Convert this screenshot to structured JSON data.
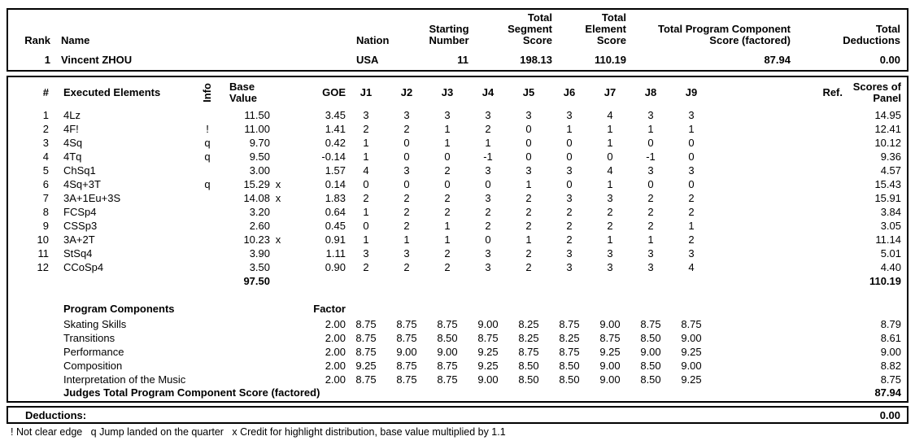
{
  "scoreboard": {
    "header": {
      "labels": {
        "rank": "Rank",
        "name": "Name",
        "nation": "Nation",
        "starting_number": "Starting\nNumber",
        "total_segment_score": "Total\nSegment\nScore",
        "total_element_score": "Total\nElement\nScore",
        "total_pcs": "Total Program Component\nScore (factored)",
        "total_deductions": "Total\nDeductions"
      },
      "result": {
        "rank": "1",
        "name": "Vincent ZHOU",
        "nation": "USA",
        "starting_number": "11",
        "total_segment_score": "198.13",
        "total_element_score": "110.19",
        "total_pcs": "87.94",
        "total_deductions": "0.00"
      }
    },
    "elements": {
      "headers": {
        "num": "#",
        "name": "Executed Elements",
        "info": "Info",
        "base_value": "Base\nValue",
        "goe": "GOE",
        "judges": [
          "J1",
          "J2",
          "J3",
          "J4",
          "J5",
          "J6",
          "J7",
          "J8",
          "J9"
        ],
        "ref": "Ref.",
        "panel": "Scores of\nPanel"
      },
      "rows": [
        {
          "num": "1",
          "name": "4Lz",
          "info": "",
          "base": "11.50",
          "x": "",
          "goe": "3.45",
          "j": [
            "3",
            "3",
            "3",
            "3",
            "3",
            "3",
            "4",
            "3",
            "3"
          ],
          "panel": "14.95"
        },
        {
          "num": "2",
          "name": "4F!",
          "info": "!",
          "base": "11.00",
          "x": "",
          "goe": "1.41",
          "j": [
            "2",
            "2",
            "1",
            "2",
            "0",
            "1",
            "1",
            "1",
            "1"
          ],
          "panel": "12.41"
        },
        {
          "num": "3",
          "name": "4Sq",
          "info": "q",
          "base": "9.70",
          "x": "",
          "goe": "0.42",
          "j": [
            "1",
            "0",
            "1",
            "1",
            "0",
            "0",
            "1",
            "0",
            "0"
          ],
          "panel": "10.12"
        },
        {
          "num": "4",
          "name": "4Tq",
          "info": "q",
          "base": "9.50",
          "x": "",
          "goe": "-0.14",
          "j": [
            "1",
            "0",
            "0",
            "-1",
            "0",
            "0",
            "0",
            "-1",
            "0"
          ],
          "panel": "9.36"
        },
        {
          "num": "5",
          "name": "ChSq1",
          "info": "",
          "base": "3.00",
          "x": "",
          "goe": "1.57",
          "j": [
            "4",
            "3",
            "2",
            "3",
            "3",
            "3",
            "4",
            "3",
            "3"
          ],
          "panel": "4.57"
        },
        {
          "num": "6",
          "name": "4Sq+3T",
          "info": "q",
          "base": "15.29",
          "x": "x",
          "goe": "0.14",
          "j": [
            "0",
            "0",
            "0",
            "0",
            "1",
            "0",
            "1",
            "0",
            "0"
          ],
          "panel": "15.43"
        },
        {
          "num": "7",
          "name": "3A+1Eu+3S",
          "info": "",
          "base": "14.08",
          "x": "x",
          "goe": "1.83",
          "j": [
            "2",
            "2",
            "2",
            "3",
            "2",
            "3",
            "3",
            "2",
            "2"
          ],
          "panel": "15.91"
        },
        {
          "num": "8",
          "name": "FCSp4",
          "info": "",
          "base": "3.20",
          "x": "",
          "goe": "0.64",
          "j": [
            "1",
            "2",
            "2",
            "2",
            "2",
            "2",
            "2",
            "2",
            "2"
          ],
          "panel": "3.84"
        },
        {
          "num": "9",
          "name": "CSSp3",
          "info": "",
          "base": "2.60",
          "x": "",
          "goe": "0.45",
          "j": [
            "0",
            "2",
            "1",
            "2",
            "2",
            "2",
            "2",
            "2",
            "1"
          ],
          "panel": "3.05"
        },
        {
          "num": "10",
          "name": "3A+2T",
          "info": "",
          "base": "10.23",
          "x": "x",
          "goe": "0.91",
          "j": [
            "1",
            "1",
            "1",
            "0",
            "1",
            "2",
            "1",
            "1",
            "2"
          ],
          "panel": "11.14"
        },
        {
          "num": "11",
          "name": "StSq4",
          "info": "",
          "base": "3.90",
          "x": "",
          "goe": "1.11",
          "j": [
            "3",
            "3",
            "2",
            "3",
            "2",
            "3",
            "3",
            "3",
            "3"
          ],
          "panel": "5.01"
        },
        {
          "num": "12",
          "name": "CCoSp4",
          "info": "",
          "base": "3.50",
          "x": "",
          "goe": "0.90",
          "j": [
            "2",
            "2",
            "2",
            "3",
            "2",
            "3",
            "3",
            "3",
            "4"
          ],
          "panel": "4.40"
        }
      ],
      "total": {
        "base": "97.50",
        "panel": "110.19"
      }
    },
    "components": {
      "title": "Program Components",
      "factor_label": "Factor",
      "rows": [
        {
          "name": "Skating Skills",
          "factor": "2.00",
          "j": [
            "8.75",
            "8.75",
            "8.75",
            "9.00",
            "8.25",
            "8.75",
            "9.00",
            "8.75",
            "8.75"
          ],
          "score": "8.79"
        },
        {
          "name": "Transitions",
          "factor": "2.00",
          "j": [
            "8.75",
            "8.75",
            "8.50",
            "8.75",
            "8.25",
            "8.25",
            "8.75",
            "8.50",
            "9.00"
          ],
          "score": "8.61"
        },
        {
          "name": "Performance",
          "factor": "2.00",
          "j": [
            "8.75",
            "9.00",
            "9.00",
            "9.25",
            "8.75",
            "8.75",
            "9.25",
            "9.00",
            "9.25"
          ],
          "score": "9.00"
        },
        {
          "name": "Composition",
          "factor": "2.00",
          "j": [
            "9.25",
            "8.75",
            "8.75",
            "9.25",
            "8.50",
            "8.50",
            "9.00",
            "8.50",
            "9.00"
          ],
          "score": "8.82"
        },
        {
          "name": "Interpretation of the Music",
          "factor": "2.00",
          "j": [
            "8.75",
            "8.75",
            "8.75",
            "9.00",
            "8.50",
            "8.50",
            "9.00",
            "8.50",
            "9.25"
          ],
          "score": "8.75"
        }
      ],
      "total_label": "Judges Total Program Component Score (factored)",
      "total_value": "87.94"
    },
    "deductions": {
      "label": "Deductions:",
      "value": "0.00"
    },
    "footnote": "! Not clear edge   q Jump landed on the quarter   x Credit for highlight distribution, base value multiplied by 1.1"
  }
}
